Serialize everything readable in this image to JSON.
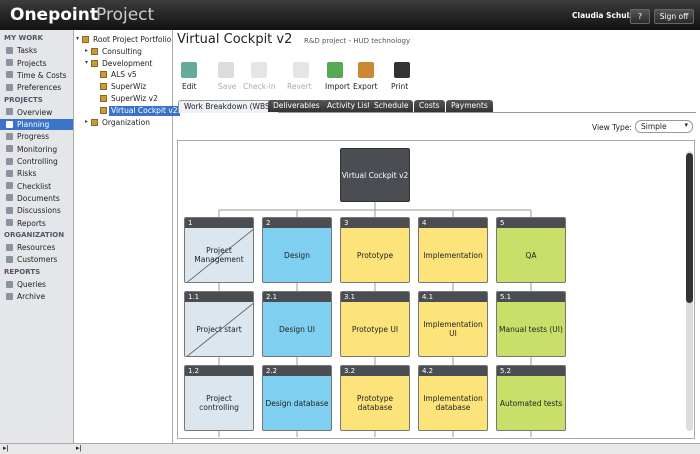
{
  "header": {
    "logo_bold": "Onepoint",
    "logo_light": "Project",
    "user": "Claudia Schulz",
    "help": "?",
    "signoff": "Sign off"
  },
  "nav": {
    "sections": [
      {
        "title": "MY WORK",
        "items": [
          "Tasks",
          "Projects",
          "Time & Costs",
          "Preferences"
        ]
      },
      {
        "title": "PROJECTS",
        "items": [
          "Overview",
          "Planning",
          "Progress",
          "Monitoring",
          "Controlling",
          "Risks",
          "Checklist",
          "Documents",
          "Discussions",
          "Reports"
        ]
      },
      {
        "title": "ORGANIZATION",
        "items": [
          "Resources",
          "Customers"
        ]
      },
      {
        "title": "REPORTS",
        "items": [
          "Queries",
          "Archive"
        ]
      }
    ]
  },
  "tree": {
    "items": [
      {
        "label": "Root Project Portfolio",
        "level": 0
      },
      {
        "label": "Consulting",
        "level": 1
      },
      {
        "label": "Development",
        "level": 1
      },
      {
        "label": "ALS v5",
        "level": 2
      },
      {
        "label": "SuperWiz",
        "level": 2
      },
      {
        "label": "SuperWiz v2",
        "level": 2
      },
      {
        "label": "Virtual Cockpit v2",
        "level": 2
      },
      {
        "label": "Organization",
        "level": 1
      }
    ]
  },
  "main": {
    "title": "Virtual Cockpit v2",
    "subtitle": "R&D project - HUD technology",
    "toolbar": [
      "Edit",
      "Save",
      "Check-in",
      "Revert",
      "Import",
      "Export",
      "Print"
    ],
    "tabs": [
      "Work Breakdown (WBS)",
      "Deliverables",
      "Activity List",
      "Schedule",
      "Costs",
      "Payments"
    ],
    "view_type_label": "View Type:",
    "view_type_value": "Simple",
    "wbs": {
      "root": "Virtual Cockpit v2",
      "nodes": [
        {
          "number": "1",
          "label": "Project Management"
        },
        {
          "number": "2",
          "label": "Design"
        },
        {
          "number": "3",
          "label": "Prototype"
        },
        {
          "number": "4",
          "label": "Implementation"
        },
        {
          "number": "5",
          "label": "QA"
        },
        {
          "number": "1.1",
          "label": "Project start"
        },
        {
          "number": "2.1",
          "label": "Design UI"
        },
        {
          "number": "3.1",
          "label": "Prototype UI"
        },
        {
          "number": "4.1",
          "label": "Implementation UI"
        },
        {
          "number": "5.1",
          "label": "Manual tests (UI)"
        },
        {
          "number": "1.2",
          "label": "Project controlling"
        },
        {
          "number": "2.2",
          "label": "Design database"
        },
        {
          "number": "3.2",
          "label": "Prototype database"
        },
        {
          "number": "4.2",
          "label": "Implementation database"
        },
        {
          "number": "5.2",
          "label": "Automated tests"
        }
      ]
    }
  }
}
